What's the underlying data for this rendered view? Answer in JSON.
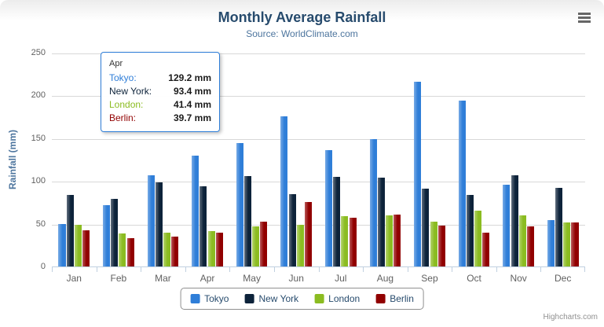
{
  "chart": {
    "title": "Monthly Average Rainfall",
    "subtitle": "Source: WorldClimate.com",
    "yaxis_title": "Rainfall (mm)",
    "credits": "Highcharts.com"
  },
  "chart_data": {
    "type": "bar",
    "title": "Monthly Average Rainfall",
    "subtitle": "Source: WorldClimate.com",
    "xlabel": "",
    "ylabel": "Rainfall (mm)",
    "ylim": [
      0,
      250
    ],
    "ytick_interval": 50,
    "grid": true,
    "legend_position": "bottom",
    "categories": [
      "Jan",
      "Feb",
      "Mar",
      "Apr",
      "May",
      "Jun",
      "Jul",
      "Aug",
      "Sep",
      "Oct",
      "Nov",
      "Dec"
    ],
    "series": [
      {
        "name": "Tokyo",
        "color": "#2f7ed8",
        "values": [
          49.9,
          71.5,
          106.4,
          129.2,
          144.0,
          176.0,
          135.6,
          148.5,
          216.4,
          194.1,
          95.6,
          54.4
        ]
      },
      {
        "name": "New York",
        "color": "#0d233a",
        "values": [
          83.6,
          78.8,
          98.5,
          93.4,
          106.0,
          84.5,
          105.0,
          104.3,
          91.2,
          83.5,
          106.6,
          92.3
        ]
      },
      {
        "name": "London",
        "color": "#8bbc21",
        "values": [
          48.9,
          38.8,
          39.3,
          41.4,
          47.0,
          48.3,
          59.0,
          59.6,
          52.4,
          65.2,
          59.3,
          51.2
        ]
      },
      {
        "name": "Berlin",
        "color": "#910000",
        "values": [
          42.4,
          33.2,
          34.5,
          39.7,
          52.6,
          75.5,
          57.4,
          60.4,
          47.6,
          39.1,
          46.8,
          51.1
        ]
      }
    ]
  },
  "tooltip": {
    "category": "Apr",
    "rows": [
      {
        "label": "Tokyo:",
        "value": "129.2 mm",
        "color": "#2f7ed8"
      },
      {
        "label": "New York:",
        "value": "93.4 mm",
        "color": "#0d233a"
      },
      {
        "label": "London:",
        "value": "41.4 mm",
        "color": "#8bbc21"
      },
      {
        "label": "Berlin:",
        "value": "39.7 mm",
        "color": "#910000"
      }
    ]
  },
  "legend": {
    "items": [
      {
        "label": "Tokyo",
        "color": "#2f7ed8"
      },
      {
        "label": "New York",
        "color": "#0d233a"
      },
      {
        "label": "London",
        "color": "#8bbc21"
      },
      {
        "label": "Berlin",
        "color": "#910000"
      }
    ]
  }
}
